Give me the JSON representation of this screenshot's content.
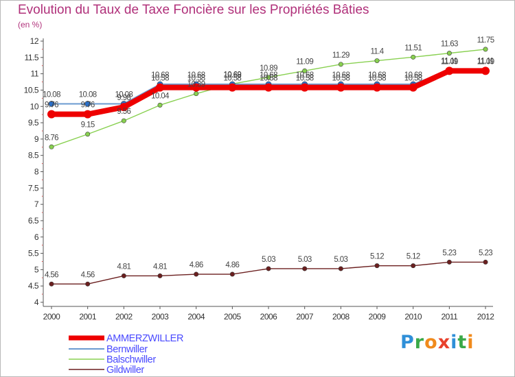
{
  "title": "Evolution du Taux de Taxe Foncière sur les Propriétés Bâties",
  "subtitle": "(en %)",
  "logo": {
    "letters": [
      "P",
      "r",
      "o",
      "x",
      "i",
      "t",
      "i"
    ],
    "colors": [
      "#2f8fd8",
      "#3aa948",
      "#f08a1c",
      "#e8412c",
      "#2f8fd8",
      "#3aa948",
      "#f08a1c"
    ]
  },
  "chart_data": {
    "type": "line",
    "x": [
      "2000",
      "2001",
      "2002",
      "2003",
      "2004",
      "2005",
      "2006",
      "2007",
      "2008",
      "2009",
      "2010",
      "2011",
      "2012"
    ],
    "y_ticks": [
      "4",
      "4.5",
      "5",
      "5.5",
      "6",
      "6.5",
      "7",
      "7.5",
      "8",
      "8.5",
      "9",
      "9.5",
      "10",
      "10.5",
      "11",
      "11.5",
      "12"
    ],
    "ylim": [
      4,
      12
    ],
    "grid": false,
    "legend": "bottom-left",
    "series": [
      {
        "name": "AMMERZWILLER",
        "color": "#ee0000",
        "values": [
          9.76,
          9.76,
          9.98,
          10.58,
          10.58,
          10.58,
          10.58,
          10.58,
          10.58,
          10.58,
          10.58,
          11.09,
          11.09
        ],
        "labels": [
          "9.76",
          "9.76",
          "9.98",
          "10.58",
          "10.58",
          "10.58",
          "10.58",
          "10.58",
          "10.58",
          "10.58",
          "10.58",
          "11.09",
          "11.09"
        ]
      },
      {
        "name": "Bernwiller",
        "color": "#6a9ad0",
        "values": [
          10.08,
          10.08,
          10.08,
          10.68,
          10.68,
          10.68,
          10.68,
          10.68,
          10.68,
          10.68,
          10.68,
          11.11,
          11.11
        ],
        "labels": [
          "10.08",
          "10.08",
          "10.08",
          "10.68",
          "10.68",
          "10.68",
          "10.68",
          "10.68",
          "10.68",
          "10.68",
          "10.68",
          "11.11",
          "11.11"
        ]
      },
      {
        "name": "Balschwiller",
        "color": "#88d050",
        "values": [
          8.76,
          9.15,
          9.56,
          10.04,
          10.39,
          10.69,
          10.89,
          11.09,
          11.29,
          11.4,
          11.51,
          11.63,
          11.75
        ],
        "labels": [
          "8.76",
          "9.15",
          "9.56",
          "10.04",
          "10.39",
          "10.69",
          "10.89",
          "11.09",
          "11.29",
          "11.4",
          "11.51",
          "11.63",
          "11.75"
        ]
      },
      {
        "name": "Gildwiller",
        "color": "#6b1f1f",
        "values": [
          4.56,
          4.56,
          4.81,
          4.81,
          4.86,
          4.86,
          5.03,
          5.03,
          5.03,
          5.12,
          5.12,
          5.23,
          5.23
        ],
        "labels": [
          "4.56",
          "4.56",
          "4.81",
          "4.81",
          "4.86",
          "4.86",
          "5.03",
          "5.03",
          "5.03",
          "5.12",
          "5.12",
          "5.23",
          "5.23"
        ]
      }
    ]
  }
}
